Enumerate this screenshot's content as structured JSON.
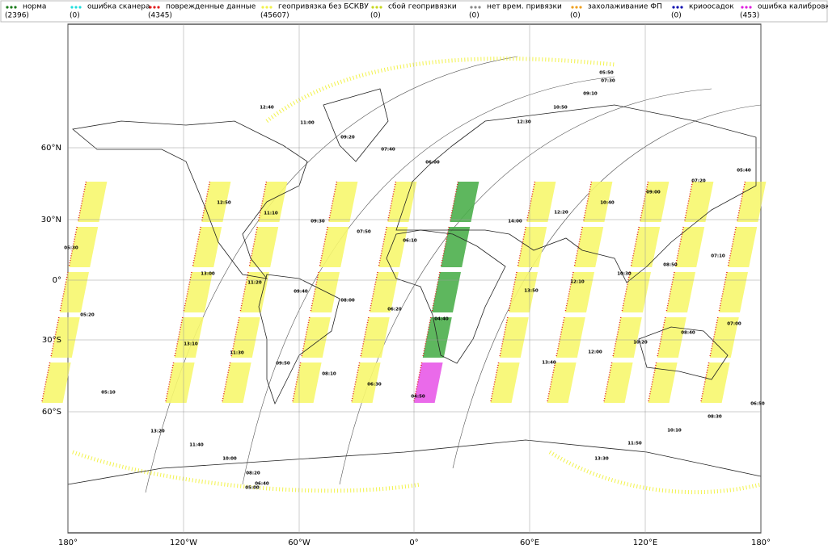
{
  "legend": [
    {
      "label": "норма",
      "count": "(2396)",
      "color": "#1a7a1a"
    },
    {
      "label": "ошибка сканера",
      "count": "(0)",
      "color": "#22dddd"
    },
    {
      "label": "поврежденные данные",
      "count": "(4345)",
      "color": "#e02020"
    },
    {
      "label": "геопривязка без БСКВУ",
      "count": "(45607)",
      "color": "#f2f24a"
    },
    {
      "label": "сбой геопривязки",
      "count": "(0)",
      "color": "#c8d820"
    },
    {
      "label": "нет врем. привязки",
      "count": "(0)",
      "color": "#888888"
    },
    {
      "label": "захолаживание ФП",
      "count": "(0)",
      "color": "#f0a020"
    },
    {
      "label": "криоосадок",
      "count": "(0)",
      "color": "#1010b0"
    },
    {
      "label": "ошибка калибровки",
      "count": "(453)",
      "color": "#e020e0"
    }
  ],
  "x_axis": [
    "180°",
    "120°W",
    "60°W",
    "0°",
    "60°E",
    "120°E",
    "180°"
  ],
  "y_axis": [
    "60°N",
    "30°N",
    "0°",
    "30°S",
    "60°S"
  ],
  "time_labels": [
    "12:40",
    "11:00",
    "09:20",
    "07:40",
    "06:00",
    "12:30",
    "10:50",
    "09:10",
    "07:30",
    "05:50",
    "12:50",
    "11:10",
    "09:30",
    "07:50",
    "06:10",
    "14:00",
    "12:20",
    "10:40",
    "09:00",
    "07:20",
    "05:40",
    "05:30",
    "13:00",
    "11:20",
    "09:40",
    "08:00",
    "06:20",
    "04:40",
    "13:50",
    "12:10",
    "10:30",
    "08:50",
    "07:10",
    "05:20",
    "13:10",
    "11:30",
    "09:50",
    "08:10",
    "06:30",
    "04:50",
    "13:40",
    "12:00",
    "10:20",
    "08:40",
    "07:00",
    "05:10",
    "13:20",
    "11:40",
    "10:00",
    "08:20",
    "06:40",
    "05:00",
    "11:50",
    "10:10",
    "08:30",
    "06:50",
    "13:30"
  ]
}
